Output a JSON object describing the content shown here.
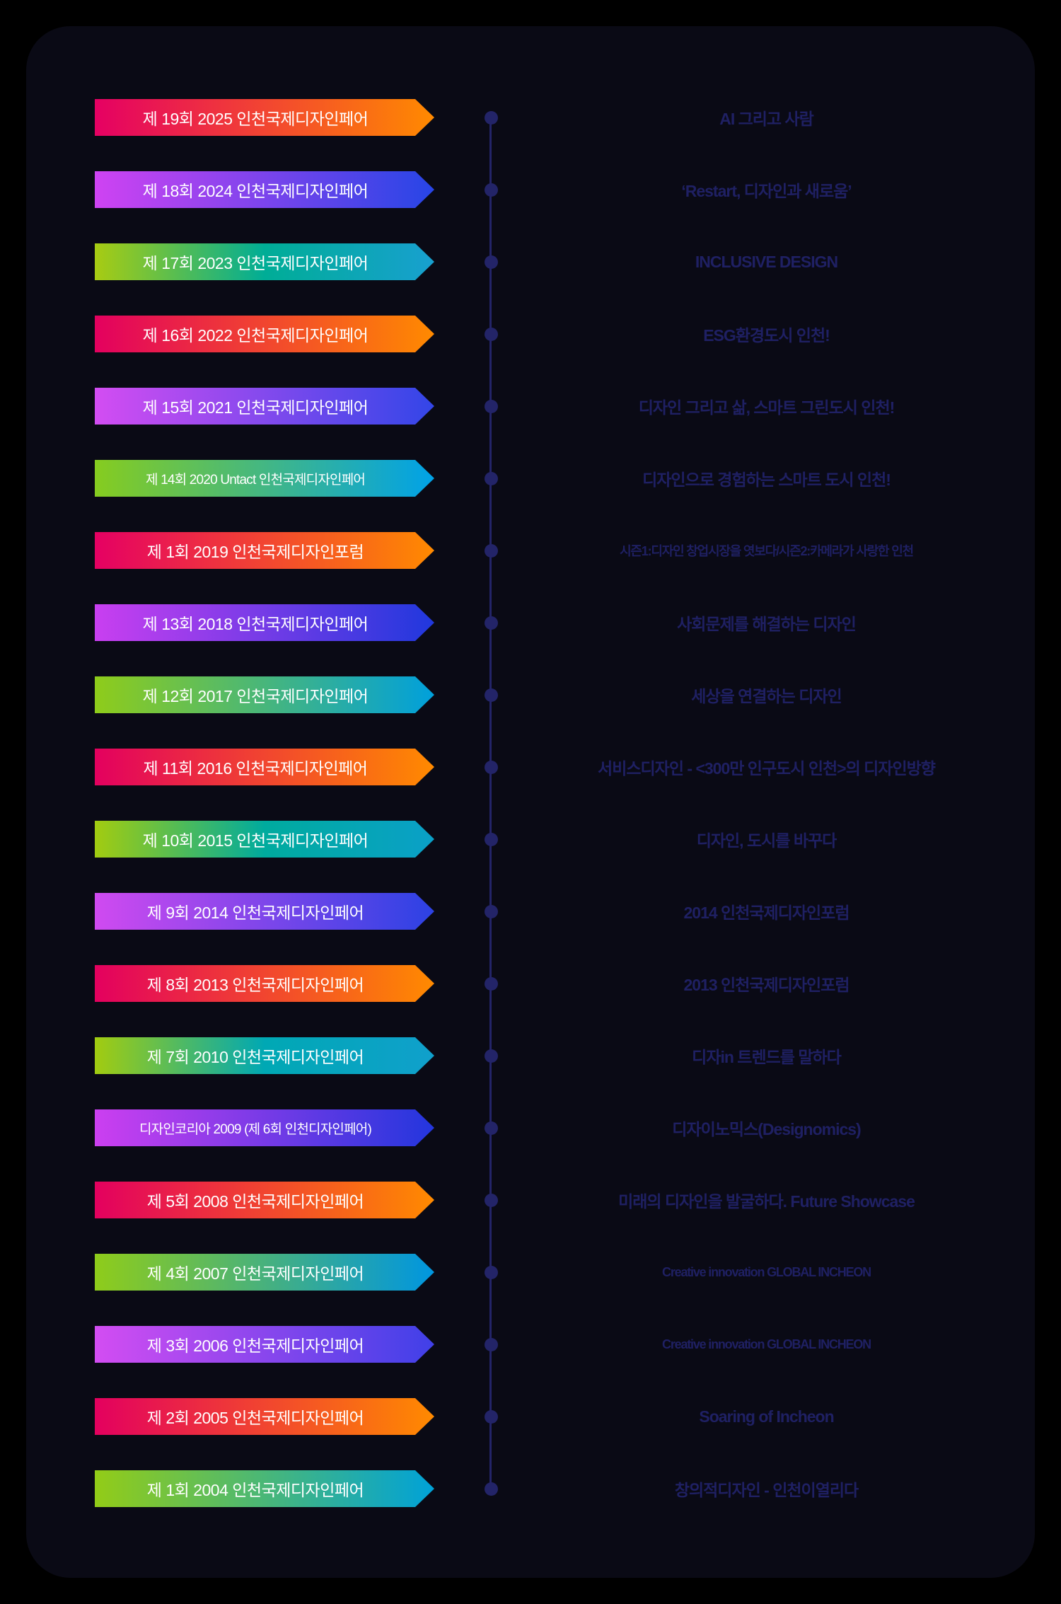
{
  "page": {
    "background_color": "#000000",
    "card_background_color": "#0a0a15",
    "accent_color": "#232468",
    "theme_text_color": "#1f2063",
    "banner_text_color": "#ffffff"
  },
  "timeline": {
    "items": [
      {
        "label": "제 19회 2025 인천국제디자인페어",
        "theme": "AI 그리고 사람",
        "gradient": [
          "#e50063",
          "#ff8a00"
        ]
      },
      {
        "label": "제 18회 2024 인천국제디자인페어",
        "theme": "‘Restart, 디자인과 새로움’",
        "gradient": [
          "#cf43f2",
          "#2745e6"
        ]
      },
      {
        "label": "제 17회 2023 인천국제디자인페어",
        "theme": "INCLUSIVE DESIGN",
        "gradient": [
          "#a8cc12",
          "#00ad96",
          "#18a0d0"
        ]
      },
      {
        "label": "제 16회 2022 인천국제디자인페어",
        "theme": "ESG환경도시 인천!",
        "gradient": [
          "#e3005f",
          "#ff8a00"
        ]
      },
      {
        "label": "제 15회 2021 인천국제디자인페어",
        "theme": "디자인 그리고 삶, 스마트 그린도시 인천!",
        "gradient": [
          "#d34df2",
          "#3346e8"
        ]
      },
      {
        "label": "제 14회 2020 Untact 인천국제디자인페어",
        "theme": "디자인으로 경험하는 스마트 도시 인천!",
        "gradient": [
          "#86cc1f",
          "#00a2e8"
        ]
      },
      {
        "label": "제 1회 2019 인천국제디자인포럼",
        "theme": "시즌1:디자인 창업시장을 엿보다/시즌2:카메라가 사랑한 인천",
        "gradient": [
          "#e50063",
          "#ff8a00"
        ]
      },
      {
        "label": "제 13회 2018 인천국제디자인페어",
        "theme": "사회문제를 해결하는 디자인",
        "gradient": [
          "#c93ff0",
          "#2038dd"
        ]
      },
      {
        "label": "제 12회 2017 인천국제디자인페어",
        "theme": "세상을 연결하는 디자인",
        "gradient": [
          "#8fcc1a",
          "#00a0dc"
        ]
      },
      {
        "label": "제 11회 2016 인천국제디자인페어",
        "theme": "서비스디자인 - <300만 인구도시 인천>의 디자인방향",
        "gradient": [
          "#e3005f",
          "#ff8a00"
        ]
      },
      {
        "label": "제 10회 2015 인천국제디자인페어",
        "theme": "디자인, 도시를 바꾸다",
        "gradient": [
          "#a2cc10",
          "#00ab9e",
          "#0aa0c8"
        ]
      },
      {
        "label": "제 9회 2014 인천국제디자인페어",
        "theme": "2014 인천국제디자인포럼",
        "gradient": [
          "#d04af0",
          "#2c42e4"
        ]
      },
      {
        "label": "제 8회 2013 인천국제디자인페어",
        "theme": "2013 인천국제디자인포럼",
        "gradient": [
          "#e3005f",
          "#ff8a00"
        ]
      },
      {
        "label": "제 7회 2010 인천국제디자인페어",
        "theme": "디자in 트렌드를 말하다",
        "gradient": [
          "#a2cc10",
          "#00a8b4",
          "#10a0cc"
        ]
      },
      {
        "label": "디자인코리아 2009 (제 6회 인천디자인페어)",
        "theme": "디자이노믹스(Designomics)",
        "gradient": [
          "#cc3ff0",
          "#2336dd"
        ]
      },
      {
        "label": "제 5회 2008 인천국제디자인페어",
        "theme": "미래의 디자인을 발굴하다. Future Showcase",
        "gradient": [
          "#e3005f",
          "#ff8a00"
        ]
      },
      {
        "label": "제 4회 2007 인천국제디자인페어",
        "theme": "Creative innovation GLOBAL INCHEON",
        "gradient": [
          "#8fcc1a",
          "#0096e0"
        ]
      },
      {
        "label": "제 3회 2006 인천국제디자인페어",
        "theme": "Creative innovation GLOBAL INCHEON",
        "gradient": [
          "#d34df2",
          "#4040e8"
        ]
      },
      {
        "label": "제 2회 2005 인천국제디자인페어",
        "theme": "Soaring of Incheon",
        "gradient": [
          "#e3005f",
          "#ff8a00"
        ]
      },
      {
        "label": "제 1회 2004 인천국제디자인페어",
        "theme": "창의적디자인 - 인천이열리다",
        "gradient": [
          "#93cc17",
          "#00a2d8"
        ]
      }
    ]
  }
}
